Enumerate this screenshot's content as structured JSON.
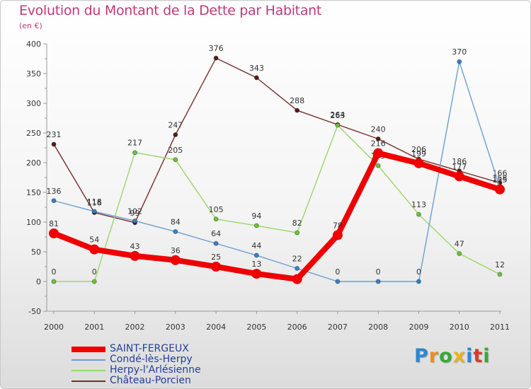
{
  "title": "Evolution du Montant de la Dette par Habitant",
  "subtitle": "(en €)",
  "logo": {
    "text": "Proxiti",
    "letter_colors": [
      "#2e86d1",
      "#f08c1a",
      "#36a838",
      "#e8b41e",
      "#2e86d1",
      "#d93a2e",
      "#36a838"
    ]
  },
  "chart_data": {
    "type": "line",
    "title": "Evolution du Montant de la Dette par Habitant",
    "ylabel": "(en €)",
    "xlabel": "",
    "x": [
      "2000",
      "2001",
      "2002",
      "2003",
      "2004",
      "2005",
      "2006",
      "2007",
      "2008",
      "2009",
      "2010",
      "2011"
    ],
    "ylim": [
      -50,
      400
    ],
    "yticks": [
      -50,
      0,
      50,
      100,
      150,
      200,
      250,
      300,
      350,
      400
    ],
    "grid": false,
    "legend_position": "bottom-left",
    "series": [
      {
        "name": "Château-Porcien",
        "color": "#7a2c2c",
        "marker_color": "#5a1818",
        "emphasis": false,
        "values": [
          231,
          116,
          99,
          247,
          376,
          343,
          288,
          264,
          240,
          206,
          186,
          166
        ],
        "labels": [
          "231",
          "116",
          "99",
          "247",
          "376",
          "343",
          "288",
          "264",
          "240",
          "206",
          "186",
          "166"
        ]
      },
      {
        "name": "Herpy-l'Arlésienne",
        "color": "#9ad66a",
        "marker_color": "#6cc23a",
        "emphasis": false,
        "values": [
          0,
          0,
          217,
          205,
          105,
          94,
          82,
          263,
          195,
          113,
          47,
          12
        ],
        "labels": [
          "0",
          "0",
          "217",
          "205",
          "105",
          "94",
          "82",
          "263",
          "195",
          "113",
          "47",
          "12"
        ]
      },
      {
        "name": "Condé-lès-Herpy",
        "color": "#6b9fd1",
        "marker_color": "#3a7fc4",
        "emphasis": false,
        "values": [
          136,
          118,
          102,
          84,
          64,
          44,
          22,
          0,
          0,
          0,
          370,
          158
        ],
        "labels": [
          "136",
          "118",
          "102",
          "84",
          "64",
          "44",
          "22",
          "0",
          "0",
          "0",
          "370",
          "158"
        ]
      },
      {
        "name": "SAINT-FERGEUX",
        "color": "#ee0000",
        "marker_color": "#ee0000",
        "emphasis": true,
        "values": [
          81,
          54,
          43,
          36,
          25,
          13,
          4,
          78,
          216,
          199,
          177,
          155
        ],
        "labels": [
          "81",
          "54",
          "43",
          "36",
          "25",
          "13",
          "",
          "78",
          "216",
          "199",
          "177",
          "155"
        ]
      }
    ]
  },
  "legend": [
    {
      "label": "SAINT-FERGEUX",
      "color": "#ee0000",
      "thickness": 8
    },
    {
      "label": "Condé-lès-Herpy",
      "color": "#6b9fd1",
      "thickness": 2
    },
    {
      "label": "Herpy-l'Arlésienne",
      "color": "#9ad66a",
      "thickness": 2
    },
    {
      "label": "Château-Porcien",
      "color": "#7a2c2c",
      "thickness": 2
    }
  ]
}
